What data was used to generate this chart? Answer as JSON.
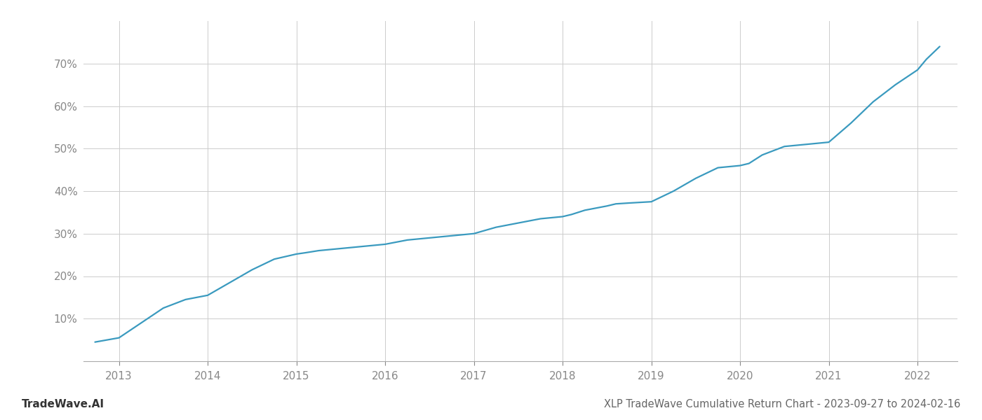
{
  "title": "XLP TradeWave Cumulative Return Chart - 2023-09-27 to 2024-02-16",
  "watermark": "TradeWave.AI",
  "line_color": "#3a9abf",
  "background_color": "#ffffff",
  "grid_color": "#cccccc",
  "x_years": [
    2013,
    2014,
    2015,
    2016,
    2017,
    2018,
    2019,
    2020,
    2021,
    2022
  ],
  "data_x": [
    2012.73,
    2013.0,
    2013.25,
    2013.5,
    2013.75,
    2014.0,
    2014.25,
    2014.5,
    2014.75,
    2015.0,
    2015.1,
    2015.25,
    2015.5,
    2015.75,
    2016.0,
    2016.25,
    2016.5,
    2016.75,
    2017.0,
    2017.25,
    2017.5,
    2017.75,
    2018.0,
    2018.1,
    2018.25,
    2018.5,
    2018.6,
    2018.75,
    2019.0,
    2019.25,
    2019.5,
    2019.75,
    2020.0,
    2020.1,
    2020.25,
    2020.5,
    2020.75,
    2021.0,
    2021.25,
    2021.5,
    2021.75,
    2022.0,
    2022.1,
    2022.25
  ],
  "data_y": [
    4.5,
    5.5,
    9.0,
    12.5,
    14.5,
    15.5,
    18.5,
    21.5,
    24.0,
    25.2,
    25.5,
    26.0,
    26.5,
    27.0,
    27.5,
    28.5,
    29.0,
    29.5,
    30.0,
    31.5,
    32.5,
    33.5,
    34.0,
    34.5,
    35.5,
    36.5,
    37.0,
    37.2,
    37.5,
    40.0,
    43.0,
    45.5,
    46.0,
    46.5,
    48.5,
    50.5,
    51.0,
    51.5,
    56.0,
    61.0,
    65.0,
    68.5,
    71.0,
    74.0
  ],
  "xlim": [
    2012.6,
    2022.45
  ],
  "ylim": [
    0,
    80
  ],
  "yticks": [
    10,
    20,
    30,
    40,
    50,
    60,
    70
  ],
  "title_fontsize": 10.5,
  "watermark_fontsize": 11,
  "tick_fontsize": 11,
  "axis_color": "#888888",
  "title_color": "#666666"
}
